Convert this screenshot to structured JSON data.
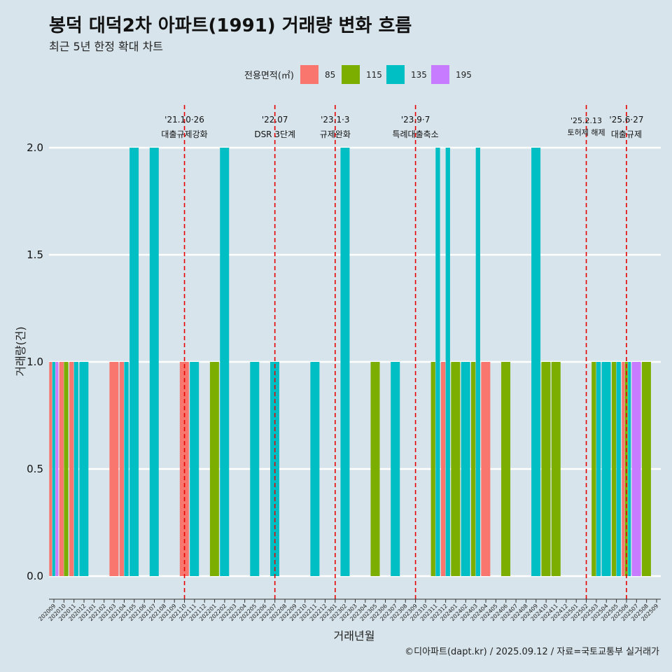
{
  "title": "봉덕 대덕2차 아파트(1991) 거래량 변화 흐름",
  "subtitle": "최근 5년 한정 확대 차트",
  "caption": "©디아파트(dapt.kr) / 2025.09.12 / 자료=국토교통부 실거래가",
  "legend": {
    "title": "전용면적(㎡)",
    "entries": [
      {
        "label": "85",
        "color": "#f8766d"
      },
      {
        "label": "115",
        "color": "#7cae00"
      },
      {
        "label": "135",
        "color": "#00bfc4"
      },
      {
        "label": "195",
        "color": "#c77cff"
      }
    ]
  },
  "chart_data": {
    "type": "bar",
    "xlabel": "거래년월",
    "ylabel": "거래량(건)",
    "ylim": [
      -0.09,
      2.2
    ],
    "yticks": [
      0.0,
      0.5,
      1.0,
      1.5,
      2.0
    ],
    "ytick_labels": [
      "0.0",
      "0.5",
      "1.0",
      "1.5",
      "2.0"
    ],
    "grid": true,
    "legend_position": "top",
    "categories": [
      "202009",
      "202010",
      "202011",
      "202012",
      "202101",
      "202102",
      "202103",
      "202104",
      "202105",
      "202106",
      "202107",
      "202108",
      "202109",
      "202110",
      "202111",
      "202112",
      "202201",
      "202202",
      "202203",
      "202204",
      "202205",
      "202206",
      "202207",
      "202208",
      "202209",
      "202210",
      "202211",
      "202212",
      "202301",
      "202302",
      "202303",
      "202304",
      "202305",
      "202306",
      "202307",
      "202308",
      "202309",
      "202310",
      "202311",
      "202312",
      "202401",
      "202402",
      "202403",
      "202404",
      "202405",
      "202406",
      "202407",
      "202408",
      "202409",
      "202410",
      "202411",
      "202412",
      "202501",
      "202502",
      "202503",
      "202504",
      "202505",
      "202506",
      "202507",
      "202508",
      "202509"
    ],
    "groups": [
      {
        "month": "202009",
        "bars": [
          {
            "area": "85",
            "value": 1
          },
          {
            "area": "135",
            "value": 1
          },
          {
            "area": "195",
            "value": 1
          }
        ]
      },
      {
        "month": "202010",
        "bars": [
          {
            "area": "85",
            "value": 1
          },
          {
            "area": "115",
            "value": 1
          }
        ]
      },
      {
        "month": "202011",
        "bars": [
          {
            "area": "85",
            "value": 1
          },
          {
            "area": "135",
            "value": 1
          }
        ]
      },
      {
        "month": "202012",
        "bars": [
          {
            "area": "135",
            "value": 1
          }
        ]
      },
      {
        "month": "202103",
        "bars": [
          {
            "area": "85",
            "value": 1
          }
        ]
      },
      {
        "month": "202104",
        "bars": [
          {
            "area": "85",
            "value": 1
          },
          {
            "area": "135",
            "value": 1
          }
        ]
      },
      {
        "month": "202105",
        "bars": [
          {
            "area": "135",
            "value": 2
          }
        ]
      },
      {
        "month": "202107",
        "bars": [
          {
            "area": "135",
            "value": 2
          }
        ]
      },
      {
        "month": "202110",
        "bars": [
          {
            "area": "85",
            "value": 1
          }
        ]
      },
      {
        "month": "202111",
        "bars": [
          {
            "area": "135",
            "value": 1
          }
        ]
      },
      {
        "month": "202201",
        "bars": [
          {
            "area": "115",
            "value": 1
          }
        ]
      },
      {
        "month": "202202",
        "bars": [
          {
            "area": "135",
            "value": 2
          }
        ]
      },
      {
        "month": "202205",
        "bars": [
          {
            "area": "135",
            "value": 1
          }
        ]
      },
      {
        "month": "202207",
        "bars": [
          {
            "area": "135",
            "value": 1
          }
        ]
      },
      {
        "month": "202211",
        "bars": [
          {
            "area": "135",
            "value": 1
          }
        ]
      },
      {
        "month": "202302",
        "bars": [
          {
            "area": "135",
            "value": 2
          }
        ]
      },
      {
        "month": "202305",
        "bars": [
          {
            "area": "115",
            "value": 1
          }
        ]
      },
      {
        "month": "202307",
        "bars": [
          {
            "area": "135",
            "value": 1
          }
        ]
      },
      {
        "month": "202311",
        "bars": [
          {
            "area": "115",
            "value": 1
          },
          {
            "area": "135",
            "value": 2
          }
        ]
      },
      {
        "month": "202312",
        "bars": [
          {
            "area": "85",
            "value": 1
          },
          {
            "area": "135",
            "value": 2
          }
        ]
      },
      {
        "month": "202401",
        "bars": [
          {
            "area": "115",
            "value": 1
          }
        ]
      },
      {
        "month": "202402",
        "bars": [
          {
            "area": "135",
            "value": 1
          }
        ]
      },
      {
        "month": "202403",
        "bars": [
          {
            "area": "115",
            "value": 1
          },
          {
            "area": "135",
            "value": 2
          }
        ]
      },
      {
        "month": "202404",
        "bars": [
          {
            "area": "85",
            "value": 1
          }
        ]
      },
      {
        "month": "202406",
        "bars": [
          {
            "area": "115",
            "value": 1
          }
        ]
      },
      {
        "month": "202409",
        "bars": [
          {
            "area": "135",
            "value": 2
          }
        ]
      },
      {
        "month": "202410",
        "bars": [
          {
            "area": "115",
            "value": 1
          }
        ]
      },
      {
        "month": "202411",
        "bars": [
          {
            "area": "115",
            "value": 1
          }
        ]
      },
      {
        "month": "202503",
        "bars": [
          {
            "area": "115",
            "value": 1
          },
          {
            "area": "135",
            "value": 1
          }
        ]
      },
      {
        "month": "202504",
        "bars": [
          {
            "area": "135",
            "value": 1
          }
        ]
      },
      {
        "month": "202505",
        "bars": [
          {
            "area": "115",
            "value": 1
          },
          {
            "area": "135",
            "value": 1
          }
        ]
      },
      {
        "month": "202506",
        "bars": [
          {
            "area": "85",
            "value": 1
          },
          {
            "area": "115",
            "value": 1
          },
          {
            "area": "135",
            "value": 1
          }
        ]
      },
      {
        "month": "202507",
        "bars": [
          {
            "area": "195",
            "value": 1
          }
        ]
      },
      {
        "month": "202508",
        "bars": [
          {
            "area": "115",
            "value": 1
          }
        ]
      }
    ],
    "annotations": [
      {
        "date_label": "'21.10·26",
        "text": "대출규제강화",
        "x": "202110"
      },
      {
        "date_label": "'22.07",
        "text": "DSR 3단계",
        "x": "202207"
      },
      {
        "date_label": "'23.1·3",
        "text": "규제완화",
        "x": "202301"
      },
      {
        "date_label": "'23.9·7",
        "text": "특례대출축소",
        "x": "202309"
      },
      {
        "date_label": "'25.2.13",
        "text": "토허제 해제",
        "x": "202502"
      },
      {
        "date_label": "'25.6·27",
        "text": "대출규제",
        "x": "202506"
      }
    ]
  }
}
